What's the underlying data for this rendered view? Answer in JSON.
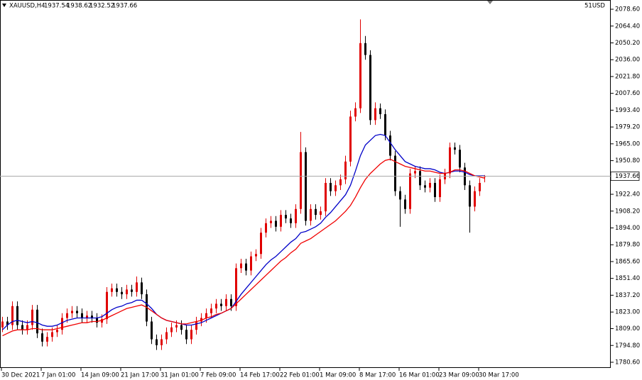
{
  "chart_data": {
    "type": "candlestick",
    "symbol": "XAUUSD,H4",
    "account": "51USD",
    "bull_color": "#e00000",
    "bear_color": "#000000",
    "ylim": [
      1775.8,
      2086.4
    ],
    "yticks": [
      {
        "value": 2078.6,
        "label": "2078.60"
      },
      {
        "value": 2064.4,
        "label": "2064.40"
      },
      {
        "value": 2050.2,
        "label": "2050.20"
      },
      {
        "value": 2036.0,
        "label": "2036.00"
      },
      {
        "value": 2021.8,
        "label": "2021.80"
      },
      {
        "value": 2007.6,
        "label": "2007.60"
      },
      {
        "value": 1993.4,
        "label": "1993.40"
      },
      {
        "value": 1979.2,
        "label": "1979.20"
      },
      {
        "value": 1965.0,
        "label": "1965.00"
      },
      {
        "value": 1950.8,
        "label": "1950.80"
      },
      {
        "value": 1922.4,
        "label": "1922.40"
      },
      {
        "value": 1908.2,
        "label": "1908.20"
      },
      {
        "value": 1894.0,
        "label": "1894.00"
      },
      {
        "value": 1879.8,
        "label": "1879.80"
      },
      {
        "value": 1865.6,
        "label": "1865.60"
      },
      {
        "value": 1851.4,
        "label": "1851.40"
      },
      {
        "value": 1837.2,
        "label": "1837.20"
      },
      {
        "value": 1823.0,
        "label": "1823.00"
      },
      {
        "value": 1809.0,
        "label": "1809.00"
      },
      {
        "value": 1794.8,
        "label": "1794.80"
      },
      {
        "value": 1780.6,
        "label": "1780.60"
      }
    ],
    "xticks": [
      {
        "value": 0,
        "label": "30 Dec 2021"
      },
      {
        "value": 8,
        "label": "7 Jan 01:00"
      },
      {
        "value": 16,
        "label": "14 Jan 09:00"
      },
      {
        "value": 24,
        "label": "21 Jan 17:00"
      },
      {
        "value": 32,
        "label": "31 Jan 01:00"
      },
      {
        "value": 40,
        "label": "7 Feb 09:00"
      },
      {
        "value": 48,
        "label": "14 Feb 17:00"
      },
      {
        "value": 56,
        "label": "22 Feb 01:00"
      },
      {
        "value": 64,
        "label": "1 Mar 09:00"
      },
      {
        "value": 72,
        "label": "8 Mar 17:00"
      },
      {
        "value": 80,
        "label": "16 Mar 01:00"
      },
      {
        "value": 88,
        "label": "23 Mar 09:00"
      },
      {
        "value": 96,
        "label": "30 Mar 17:00"
      }
    ],
    "open": [
      1810,
      1815,
      1812,
      1828,
      1812,
      1808,
      1812,
      1825,
      1805,
      1798,
      1802,
      1806,
      1808,
      1818,
      1822,
      1824,
      1822,
      1818,
      1820,
      1818,
      1814,
      1817,
      1840,
      1843,
      1840,
      1838,
      1842,
      1840,
      1848,
      1838,
      1815,
      1800,
      1795,
      1800,
      1806,
      1810,
      1812,
      1808,
      1800,
      1808,
      1815,
      1818,
      1822,
      1826,
      1830,
      1828,
      1834,
      1828,
      1860,
      1864,
      1858,
      1870,
      1872,
      1890,
      1898,
      1900,
      1895,
      1905,
      1902,
      1898,
      1910,
      1958,
      1900,
      1910,
      1905,
      1908,
      1932,
      1925,
      1930,
      1935,
      1950,
      1988,
      1995,
      2050,
      2040,
      1985,
      1995,
      1990,
      1972,
      1955,
      1925,
      1918,
      1910,
      1940,
      1942,
      1930,
      1928,
      1932,
      1920,
      1935,
      1940,
      1962,
      1960,
      1945,
      1930,
      1912,
      1925,
      1937.54
    ],
    "high": [
      1819,
      1819,
      1832,
      1832,
      1816,
      1816,
      1829,
      1829,
      1809,
      1806,
      1810,
      1812,
      1822,
      1826,
      1828,
      1828,
      1826,
      1824,
      1824,
      1822,
      1821,
      1844,
      1847,
      1847,
      1844,
      1846,
      1846,
      1853,
      1852,
      1842,
      1819,
      1804,
      1804,
      1810,
      1814,
      1816,
      1816,
      1812,
      1812,
      1819,
      1822,
      1826,
      1830,
      1834,
      1834,
      1838,
      1838,
      1864,
      1868,
      1868,
      1874,
      1876,
      1894,
      1902,
      1904,
      1904,
      1909,
      1909,
      1906,
      1914,
      1975,
      1962,
      1914,
      1914,
      1912,
      1936,
      1936,
      1934,
      1939,
      1955,
      1993,
      2000,
      2070,
      2056,
      2044,
      2000,
      1999,
      1994,
      1976,
      1959,
      1929,
      1922,
      1944,
      1946,
      1946,
      1934,
      1936,
      1936,
      1939,
      1944,
      1966,
      1966,
      1964,
      1949,
      1934,
      1929,
      1936,
      1938.62
    ],
    "low": [
      1806,
      1808,
      1808,
      1808,
      1804,
      1804,
      1808,
      1801,
      1794,
      1794,
      1798,
      1802,
      1804,
      1814,
      1818,
      1818,
      1814,
      1814,
      1814,
      1810,
      1810,
      1813,
      1836,
      1836,
      1834,
      1834,
      1836,
      1836,
      1834,
      1811,
      1796,
      1791,
      1791,
      1796,
      1802,
      1806,
      1804,
      1796,
      1796,
      1804,
      1811,
      1814,
      1818,
      1822,
      1824,
      1824,
      1824,
      1824,
      1856,
      1854,
      1854,
      1866,
      1868,
      1886,
      1894,
      1891,
      1891,
      1898,
      1894,
      1894,
      1906,
      1896,
      1896,
      1901,
      1901,
      1904,
      1921,
      1921,
      1926,
      1931,
      1946,
      1984,
      1991,
      2036,
      1981,
      1981,
      1986,
      1968,
      1951,
      1921,
      1895,
      1906,
      1906,
      1936,
      1926,
      1924,
      1924,
      1916,
      1916,
      1931,
      1936,
      1956,
      1941,
      1926,
      1890,
      1908,
      1921,
      1932.52
    ],
    "close": [
      1815,
      1812,
      1828,
      1812,
      1808,
      1812,
      1825,
      1805,
      1798,
      1802,
      1806,
      1808,
      1818,
      1822,
      1824,
      1822,
      1818,
      1820,
      1818,
      1814,
      1817,
      1840,
      1843,
      1840,
      1838,
      1842,
      1840,
      1848,
      1838,
      1815,
      1800,
      1795,
      1800,
      1806,
      1810,
      1812,
      1808,
      1800,
      1808,
      1815,
      1818,
      1822,
      1826,
      1830,
      1828,
      1834,
      1828,
      1860,
      1864,
      1858,
      1870,
      1872,
      1890,
      1898,
      1900,
      1895,
      1905,
      1902,
      1898,
      1910,
      1958,
      1900,
      1910,
      1905,
      1908,
      1932,
      1925,
      1930,
      1935,
      1950,
      1988,
      1995,
      2050,
      2040,
      1985,
      1995,
      1990,
      1972,
      1955,
      1925,
      1918,
      1910,
      1940,
      1942,
      1930,
      1928,
      1932,
      1920,
      1935,
      1940,
      1962,
      1960,
      1945,
      1930,
      1912,
      1925,
      1932,
      1937.66
    ],
    "series": [
      {
        "color": "#0000c8",
        "values": [
          1808,
          1812,
          1815,
          1816,
          1815,
          1814,
          1815,
          1814,
          1812,
          1811,
          1811,
          1812,
          1814,
          1816,
          1817,
          1818,
          1818,
          1818,
          1818,
          1818,
          1819,
          1822,
          1825,
          1827,
          1828,
          1830,
          1831,
          1833,
          1833,
          1830,
          1826,
          1821,
          1818,
          1816,
          1815,
          1814,
          1813,
          1812,
          1812,
          1813,
          1814,
          1816,
          1818,
          1820,
          1822,
          1824,
          1826,
          1832,
          1838,
          1843,
          1848,
          1853,
          1858,
          1863,
          1867,
          1870,
          1874,
          1878,
          1882,
          1885,
          1890,
          1891,
          1893,
          1895,
          1898,
          1903,
          1907,
          1912,
          1917,
          1922,
          1930,
          1942,
          1955,
          1964,
          1968,
          1972,
          1973,
          1972,
          1966,
          1960,
          1955,
          1950,
          1948,
          1946,
          1945,
          1944,
          1944,
          1943,
          1941,
          1940,
          1941,
          1942,
          1942,
          1941,
          1939,
          1938,
          1938,
          1938
        ]
      },
      {
        "color": "#f00000",
        "values": [
          1803,
          1805,
          1807,
          1808,
          1808,
          1808,
          1809,
          1809,
          1808,
          1808,
          1808,
          1809,
          1810,
          1811,
          1812,
          1813,
          1814,
          1814,
          1815,
          1815,
          1816,
          1818,
          1820,
          1822,
          1824,
          1826,
          1827,
          1828,
          1829,
          1827,
          1824,
          1821,
          1818,
          1816,
          1815,
          1814,
          1813,
          1813,
          1814,
          1815,
          1816,
          1818,
          1819,
          1821,
          1822,
          1824,
          1826,
          1830,
          1834,
          1838,
          1842,
          1846,
          1850,
          1854,
          1858,
          1862,
          1866,
          1869,
          1873,
          1876,
          1881,
          1883,
          1885,
          1888,
          1891,
          1894,
          1897,
          1900,
          1904,
          1908,
          1913,
          1920,
          1928,
          1935,
          1940,
          1944,
          1948,
          1951,
          1952,
          1950,
          1948,
          1946,
          1945,
          1944,
          1943,
          1942,
          1942,
          1941,
          1940,
          1940,
          1941,
          1943,
          1943,
          1942,
          1940,
          1938,
          1937,
          1936
        ]
      }
    ]
  }
}
